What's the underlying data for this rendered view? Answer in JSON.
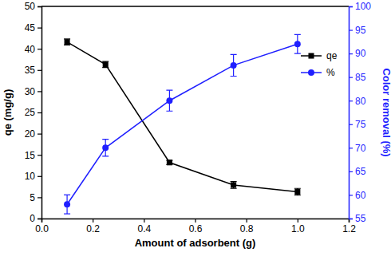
{
  "chart_data": {
    "type": "line",
    "x_label": "Amount of adsorbent (g)",
    "y_label": "qe (mg/g)",
    "y2_label": "Color removal (%)",
    "x": [
      0.1,
      0.25,
      0.5,
      0.75,
      1.0
    ],
    "xlim": [
      0,
      1.2
    ],
    "xticks": [
      {
        "value": 0,
        "label": "0.0"
      },
      0.2,
      0.4,
      0.6,
      0.8,
      {
        "value": 1,
        "label": "1.0"
      },
      1.2
    ],
    "ylim": [
      0,
      50
    ],
    "yticks": [
      0,
      5,
      10,
      15,
      20,
      25,
      30,
      35,
      40,
      45,
      50
    ],
    "y2lim": [
      55,
      100
    ],
    "y2ticks": [
      55,
      60,
      65,
      70,
      75,
      80,
      85,
      90,
      95,
      100
    ],
    "legend": "upper right",
    "series": [
      {
        "name": "qe",
        "color": "#000000",
        "marker": "square",
        "values": [
          41.6,
          36.3,
          13.2,
          7.9,
          6.3
        ],
        "errors": [
          0.7,
          0.7,
          0.5,
          0.8,
          0.8
        ]
      },
      {
        "name": "%",
        "color": "#1f1fff",
        "marker": "circle",
        "axis": "y2",
        "values": [
          58,
          70,
          80,
          87.5,
          92
        ],
        "errors": [
          2.0,
          1.8,
          2.2,
          2.3,
          2.0
        ]
      }
    ]
  }
}
